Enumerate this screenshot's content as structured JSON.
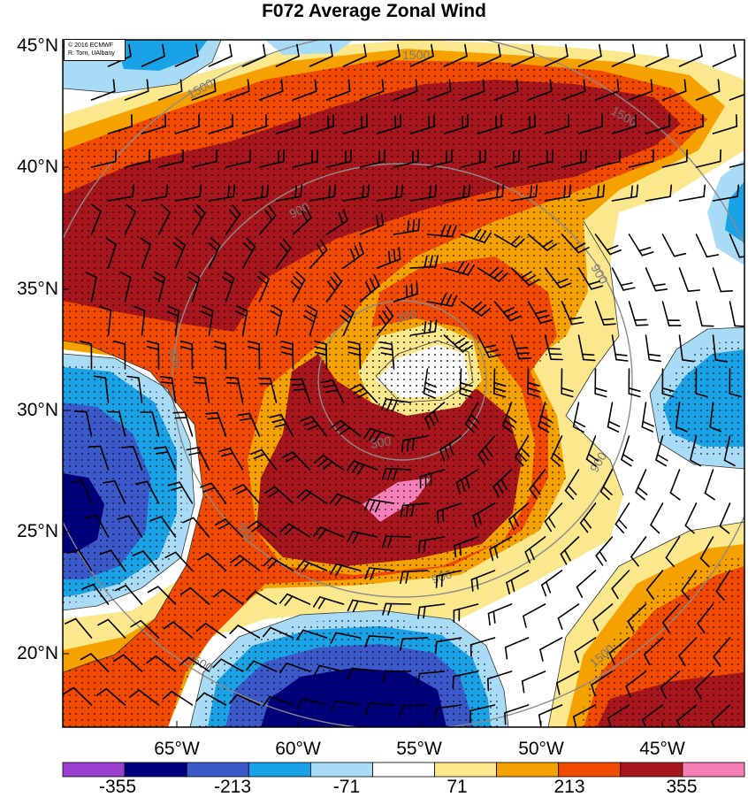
{
  "title": "F072 Average Zonal Wind",
  "credit": {
    "line1": "© 2016 ECMWF",
    "line2": "R. Torn, UAlbany"
  },
  "latitude_labels": [
    "45°N",
    "40°N",
    "35°N",
    "30°N",
    "25°N",
    "20°N"
  ],
  "longitude_labels": [
    "65°W",
    "60°W",
    "55°W",
    "50°W",
    "45°W"
  ],
  "contour_labels": [
    "1500",
    "1500",
    "900",
    "900",
    "300",
    "300",
    "900",
    "900",
    "900",
    "900",
    "1500",
    "1500",
    "1500"
  ],
  "colorbar": {
    "tick_labels": [
      "-355",
      "-213",
      "-71",
      "71",
      "213",
      "355"
    ],
    "colors": [
      "#9b3fd1",
      "#00007f",
      "#3b59c9",
      "#1aa2e6",
      "#a8dbf5",
      "#ffffff",
      "#fbe88d",
      "#f5a100",
      "#f24a00",
      "#a8161d",
      "#f77fb8"
    ]
  },
  "palette": {
    "background": "#ffffff",
    "range_ring": "#8c8c8c",
    "barb": "#000000"
  }
}
